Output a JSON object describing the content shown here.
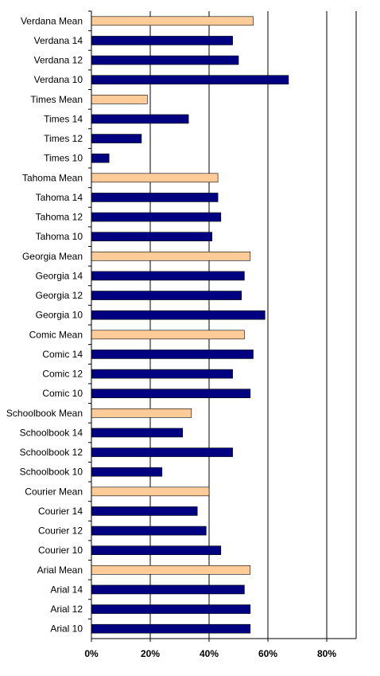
{
  "chart_data": {
    "type": "bar",
    "orientation": "horizontal",
    "title": "",
    "xlabel": "",
    "ylabel": "",
    "xlim": [
      0,
      90
    ],
    "x_ticks": [
      0,
      20,
      40,
      60,
      80
    ],
    "x_tick_labels": [
      "0%",
      "20%",
      "40%",
      "60%",
      "80%"
    ],
    "grid": "vertical major gridlines",
    "legend": "none",
    "colors": {
      "mean": "#FFCC99",
      "size": "#000080",
      "outline": "#000000",
      "grid": "#000000"
    },
    "categories": [
      "Verdana Mean",
      "Verdana 14",
      "Verdana 12",
      "Verdana 10",
      "Times Mean",
      "Times 14",
      "Times 12",
      "Times 10",
      "Tahoma Mean",
      "Tahoma 14",
      "Tahoma 12",
      "Tahoma 10",
      "Georgia Mean",
      "Georgia 14",
      "Georgia 12",
      "Georgia 10",
      "Comic Mean",
      "Comic 14",
      "Comic 12",
      "Comic 10",
      "Schoolbook Mean",
      "Schoolbook 14",
      "Schoolbook 12",
      "Schoolbook 10",
      "Courier Mean",
      "Courier 14",
      "Courier 12",
      "Courier 10",
      "Arial Mean",
      "Arial 14",
      "Arial 12",
      "Arial 10"
    ],
    "values": [
      55,
      48,
      50,
      67,
      19,
      33,
      17,
      6,
      43,
      43,
      44,
      41,
      54,
      52,
      51,
      59,
      52,
      55,
      48,
      54,
      34,
      31,
      48,
      24,
      40,
      36,
      39,
      44,
      54,
      52,
      54,
      54
    ],
    "is_mean": [
      true,
      false,
      false,
      false,
      true,
      false,
      false,
      false,
      true,
      false,
      false,
      false,
      true,
      false,
      false,
      false,
      true,
      false,
      false,
      false,
      true,
      false,
      false,
      false,
      true,
      false,
      false,
      false,
      true,
      false,
      false,
      false
    ]
  }
}
